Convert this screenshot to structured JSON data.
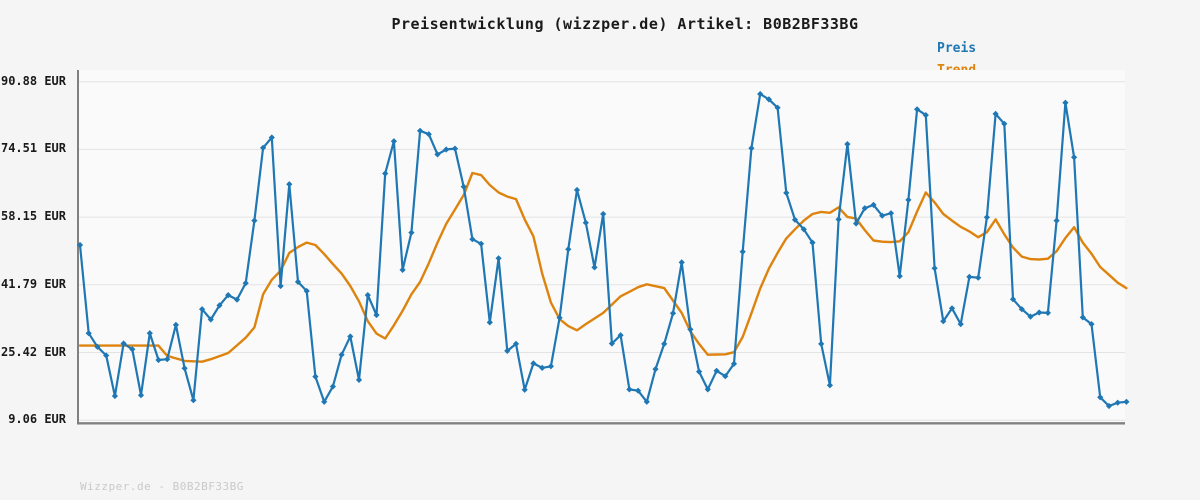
{
  "page": {
    "title": "Preisentwicklung (wizzper.de) Artikel: B0B2BF33BG",
    "footer": "Wizzper.de - B0B2BF33BG"
  },
  "legend": {
    "items": [
      {
        "label": "Preis",
        "color": "#1f77b4"
      },
      {
        "label": "Trend",
        "color": "#dd830e"
      }
    ]
  },
  "colors": {
    "background": "#f5f5f5",
    "plot_background": "#fafafa",
    "grid": "#e3e3e3",
    "axis": "#808080",
    "preis_line": "#1f77b4",
    "trend_line": "#dd830e",
    "title_text": "#1a1a1a",
    "tick_text": "#1a1a1a",
    "footer_text": "#c9c9c9"
  },
  "chart_data": {
    "type": "line",
    "title": "Preisentwicklung (wizzper.de) Artikel: B0B2BF33BG",
    "xlabel": "",
    "ylabel": "EUR",
    "ylim": [
      9.06,
      90.88
    ],
    "grid": true,
    "legend_position": "top-right",
    "x_tick_labels": [],
    "y_ticks": [
      {
        "value": 90.88,
        "label": "90.88 EUR"
      },
      {
        "value": 74.51,
        "label": "74.51 EUR"
      },
      {
        "value": 58.15,
        "label": "58.15 EUR"
      },
      {
        "value": 41.79,
        "label": "41.79 EUR"
      },
      {
        "value": 25.42,
        "label": "25.42 EUR"
      },
      {
        "value": 9.06,
        "label": "9.06 EUR"
      }
    ],
    "series": [
      {
        "name": "Preis",
        "color": "#1f77b4",
        "marker": "diamond",
        "values": [
          51.4,
          30.1,
          26.8,
          24.7,
          14.9,
          27.6,
          26.2,
          15.1,
          30.1,
          23.6,
          23.8,
          32.1,
          21.6,
          13.9,
          35.9,
          33.4,
          36.8,
          39.3,
          38.2,
          42.2,
          57.3,
          74.9,
          77.4,
          41.5,
          66.1,
          42.5,
          40.3,
          19.6,
          13.5,
          17.2,
          24.9,
          29.3,
          18.8,
          39.3,
          34.5,
          68.7,
          76.5,
          45.4,
          54.4,
          79.0,
          78.2,
          73.3,
          74.5,
          74.7,
          65.5,
          52.8,
          51.7,
          32.7,
          48.2,
          25.8,
          27.5,
          16.4,
          22.8,
          21.7,
          22.1,
          33.8,
          50.4,
          64.7,
          56.8,
          46.0,
          58.9,
          27.6,
          29.6,
          16.5,
          16.2,
          13.5,
          21.4,
          27.5,
          34.9,
          47.2,
          31.0,
          20.8,
          16.5,
          21.0,
          19.7,
          22.7,
          49.8,
          74.8,
          87.9,
          86.6,
          84.6,
          64.0,
          57.5,
          55.2,
          52.0,
          27.5,
          17.5,
          57.6,
          75.8,
          56.6,
          60.3,
          61.1,
          58.5,
          59.1,
          43.9,
          62.3,
          84.2,
          82.8,
          45.8,
          33.0,
          36.1,
          32.3,
          43.7,
          43.5,
          58.1,
          83.1,
          80.7,
          38.3,
          35.9,
          34.1,
          35.1,
          35.0,
          57.3,
          85.8,
          72.6,
          33.9,
          32.3,
          14.6,
          12.5,
          13.3,
          13.5
        ]
      },
      {
        "name": "Trend",
        "color": "#dd830e",
        "marker": "none",
        "anchor_points": [
          [
            0,
            27.1
          ],
          [
            9,
            27.1
          ],
          [
            10,
            24.6
          ],
          [
            12,
            23.4
          ],
          [
            14,
            23.2
          ],
          [
            15,
            23.8
          ],
          [
            17,
            25.3
          ],
          [
            19,
            29.0
          ],
          [
            20,
            31.5
          ],
          [
            21,
            39.5
          ],
          [
            22,
            43.0
          ],
          [
            23,
            45.2
          ],
          [
            24,
            49.5
          ],
          [
            25,
            50.9
          ],
          [
            26,
            52.0
          ],
          [
            27,
            51.4
          ],
          [
            28,
            49.2
          ],
          [
            29,
            46.8
          ],
          [
            30,
            44.5
          ],
          [
            31,
            41.5
          ],
          [
            32,
            37.8
          ],
          [
            33,
            33.0
          ],
          [
            34,
            30.0
          ],
          [
            35,
            28.8
          ],
          [
            36,
            32.0
          ],
          [
            37,
            35.5
          ],
          [
            38,
            39.5
          ],
          [
            39,
            42.5
          ],
          [
            40,
            47.0
          ],
          [
            41,
            52.0
          ],
          [
            42,
            56.5
          ],
          [
            43,
            60.0
          ],
          [
            44,
            63.5
          ],
          [
            45,
            68.8
          ],
          [
            46,
            68.3
          ],
          [
            47,
            65.9
          ],
          [
            48,
            64.1
          ],
          [
            49,
            63.1
          ],
          [
            50,
            62.5
          ],
          [
            51,
            57.6
          ],
          [
            52,
            53.5
          ],
          [
            53,
            44.5
          ],
          [
            54,
            37.5
          ],
          [
            55,
            33.5
          ],
          [
            56,
            31.8
          ],
          [
            57,
            30.8
          ],
          [
            58,
            32.3
          ],
          [
            60,
            35.0
          ],
          [
            62,
            39.0
          ],
          [
            64,
            41.2
          ],
          [
            65,
            41.9
          ],
          [
            67,
            41.0
          ],
          [
            69,
            35.0
          ],
          [
            70,
            30.5
          ],
          [
            71,
            27.5
          ],
          [
            72,
            24.9
          ],
          [
            74,
            25.0
          ],
          [
            75,
            25.5
          ],
          [
            76,
            29.2
          ],
          [
            77,
            34.9
          ],
          [
            78,
            40.9
          ],
          [
            79,
            45.7
          ],
          [
            80,
            49.5
          ],
          [
            81,
            53.0
          ],
          [
            82,
            55.2
          ],
          [
            83,
            57.3
          ],
          [
            84,
            58.9
          ],
          [
            85,
            59.4
          ],
          [
            86,
            59.2
          ],
          [
            87,
            60.5
          ],
          [
            88,
            58.2
          ],
          [
            89,
            57.8
          ],
          [
            90,
            55.0
          ],
          [
            91,
            52.5
          ],
          [
            92,
            52.2
          ],
          [
            93,
            52.1
          ],
          [
            94,
            52.3
          ],
          [
            95,
            54.5
          ],
          [
            96,
            59.5
          ],
          [
            97,
            64.1
          ],
          [
            98,
            61.7
          ],
          [
            99,
            58.9
          ],
          [
            100,
            57.3
          ],
          [
            101,
            55.8
          ],
          [
            102,
            54.7
          ],
          [
            103,
            53.3
          ],
          [
            104,
            54.5
          ],
          [
            105,
            57.6
          ],
          [
            106,
            54.0
          ],
          [
            107,
            50.8
          ],
          [
            108,
            48.6
          ],
          [
            109,
            48.0
          ],
          [
            110,
            47.9
          ],
          [
            111,
            48.1
          ],
          [
            112,
            49.9
          ],
          [
            113,
            53.1
          ],
          [
            114,
            55.7
          ],
          [
            115,
            52.0
          ],
          [
            116,
            49.3
          ],
          [
            117,
            46.1
          ],
          [
            118,
            44.2
          ],
          [
            119,
            42.3
          ],
          [
            120,
            41.0
          ]
        ]
      }
    ]
  }
}
